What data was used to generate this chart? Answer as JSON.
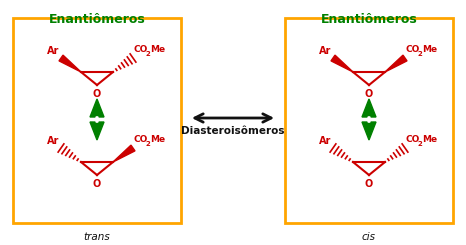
{
  "bg_color": "#ffffff",
  "box_color": "#FFA500",
  "red_color": "#cc0000",
  "green_color": "#008000",
  "black_color": "#111111",
  "title_left": "Enantiômeros",
  "title_right": "Enantiômeros",
  "label_trans": "trans",
  "label_cis": "cis",
  "diastereo_label": "Diasteroisômeros"
}
